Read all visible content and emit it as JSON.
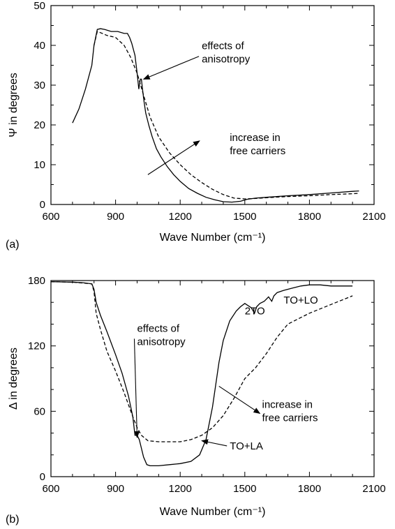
{
  "chart_data": [
    {
      "type": "line",
      "panel_label": "(a)",
      "xlabel": "Wave Number (cm⁻¹)",
      "ylabel": "Ψ in degrees",
      "xlim": [
        600,
        2100
      ],
      "ylim": [
        0,
        50
      ],
      "x_ticks": [
        600,
        900,
        1200,
        1500,
        1800,
        2100
      ],
      "y_ticks": [
        0,
        10,
        20,
        30,
        40,
        50
      ],
      "grid": false,
      "series": [
        {
          "style": "solid",
          "x": [
            700,
            730,
            760,
            790,
            800,
            815,
            830,
            850,
            880,
            910,
            940,
            955,
            965,
            975,
            990,
            1000,
            1008,
            1015,
            1020,
            1025,
            1032,
            1040,
            1055,
            1070,
            1090,
            1110,
            1140,
            1170,
            1200,
            1240,
            1280,
            1320,
            1360,
            1400,
            1440,
            1480,
            1510,
            1550,
            1600,
            1700,
            1800,
            1900,
            2000,
            2030
          ],
          "y": [
            20.5,
            24,
            29,
            35,
            40,
            44,
            44.2,
            44,
            43.5,
            43.5,
            43,
            43,
            42,
            40.5,
            37.5,
            33,
            29,
            31.5,
            31.5,
            29,
            26,
            23,
            19.8,
            17,
            14,
            12,
            9.5,
            7.5,
            5.8,
            4,
            2.8,
            1.8,
            1.2,
            0.7,
            0.6,
            0.8,
            1.3,
            1.6,
            1.8,
            2.2,
            2.5,
            2.9,
            3.3,
            3.4
          ]
        },
        {
          "style": "dashed",
          "x": [
            800,
            815,
            830,
            860,
            900,
            940,
            970,
            1000,
            1030,
            1060,
            1100,
            1150,
            1200,
            1250,
            1300,
            1350,
            1400,
            1450,
            1500,
            1550,
            1600,
            1700,
            1800,
            1900,
            2000,
            2030
          ],
          "y": [
            40,
            43.5,
            43.2,
            42.5,
            42,
            40,
            37,
            33,
            27.5,
            22,
            17,
            13,
            10,
            7.5,
            5.5,
            3.8,
            2.5,
            1.6,
            1.4,
            1.5,
            1.7,
            2,
            2.2,
            2.5,
            2.7,
            2.8
          ]
        }
      ],
      "annotations": [
        {
          "lines": [
            "effects of",
            "anisotropy"
          ],
          "x": 1300,
          "y": 39,
          "arrow_to": [
            1030,
            31.5
          ]
        },
        {
          "lines": [
            "increase in",
            "free carriers"
          ],
          "x": 1430,
          "y": 16,
          "arrow_from": [
            1050,
            7.5
          ],
          "arrow_to": [
            1290,
            16
          ]
        }
      ]
    },
    {
      "type": "line",
      "panel_label": "(b)",
      "xlabel": "Wave Number (cm⁻¹)",
      "ylabel": "Δ in degrees",
      "xlim": [
        600,
        2100
      ],
      "ylim": [
        0,
        180
      ],
      "x_ticks": [
        600,
        900,
        1200,
        1500,
        1800,
        2100
      ],
      "y_ticks": [
        0,
        60,
        120,
        180
      ],
      "grid": false,
      "series": [
        {
          "style": "solid",
          "x": [
            600,
            700,
            750,
            790,
            800,
            810,
            830,
            860,
            900,
            930,
            960,
            980,
            990,
            1000,
            1010,
            1030,
            1045,
            1060,
            1100,
            1150,
            1200,
            1250,
            1290,
            1320,
            1350,
            1380,
            1400,
            1430,
            1460,
            1480,
            1500,
            1530,
            1545,
            1555,
            1570,
            1590,
            1610,
            1625,
            1635,
            1650,
            1680,
            1720,
            1760,
            1800,
            1850,
            1900,
            1950,
            2000
          ],
          "y": [
            179,
            178.5,
            178,
            177,
            172,
            160,
            148,
            133,
            112,
            95,
            74,
            55,
            38,
            38,
            34,
            18,
            11,
            10,
            10,
            11,
            12,
            14,
            20,
            34,
            64,
            105,
            125,
            143,
            152,
            156,
            159,
            155,
            150,
            156,
            159,
            161,
            165,
            161,
            166,
            169,
            171,
            173,
            175,
            176,
            176,
            175,
            175,
            175
          ]
        },
        {
          "style": "dashed",
          "x": [
            600,
            700,
            790,
            800,
            810,
            830,
            860,
            900,
            940,
            980,
            1000,
            1020,
            1050,
            1100,
            1150,
            1200,
            1250,
            1300,
            1350,
            1400,
            1450,
            1500,
            1550,
            1600,
            1650,
            1700,
            1800,
            1900,
            2000
          ],
          "y": [
            179,
            178.5,
            177,
            170,
            150,
            135,
            115,
            97,
            77,
            55,
            45,
            38,
            33,
            32,
            32,
            32,
            34,
            38,
            45,
            56,
            72,
            90,
            100,
            113,
            128,
            140,
            150,
            158,
            166
          ]
        }
      ],
      "annotations": [
        {
          "lines": [
            "effects of",
            "anisotropy"
          ],
          "x": 1000,
          "y": 133,
          "arrow_to": [
            1000,
            36
          ]
        },
        {
          "lines": [
            "increase in",
            "free carriers"
          ],
          "x": 1580,
          "y": 63,
          "arrow_from": [
            1380,
            83
          ],
          "arrow_to": [
            1570,
            58
          ]
        },
        {
          "lines": [
            "2TO"
          ],
          "x": 1500,
          "y": 149
        },
        {
          "lines": [
            "TO+LO"
          ],
          "x": 1680,
          "y": 159
        },
        {
          "lines": [
            "TO+LA"
          ],
          "x": 1430,
          "y": 25,
          "arrow_to": [
            1300,
            33
          ]
        }
      ]
    }
  ]
}
